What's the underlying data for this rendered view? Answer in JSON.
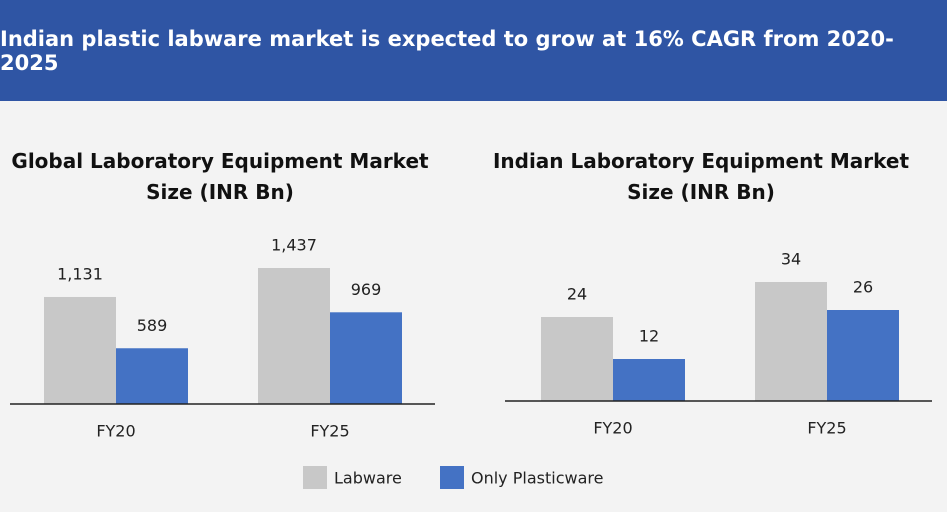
{
  "header": {
    "title": "Indian plastic labware market is expected to grow at 16% CAGR from 2020-2025"
  },
  "chart_data": [
    {
      "type": "bar",
      "title": "Global Laboratory Equipment Market\nSize (INR Bn)",
      "categories": [
        "FY20",
        "FY25"
      ],
      "series": [
        {
          "name": "Labware",
          "color": "#c8c8c8",
          "values": [
            1131,
            1437
          ],
          "value_labels": [
            "1,131",
            "1,437"
          ]
        },
        {
          "name": "Only Plasticware",
          "color": "#4472c4",
          "values": [
            589,
            969
          ],
          "value_labels": [
            "589",
            "969"
          ]
        }
      ]
    },
    {
      "type": "bar",
      "title": "Indian Laboratory Equipment Market\nSize (INR Bn)",
      "categories": [
        "FY20",
        "FY25"
      ],
      "series": [
        {
          "color": "#c8c8c8",
          "values": [
            24,
            34
          ]
        },
        {
          "color": "#4472c4",
          "values": [
            12,
            26
          ]
        }
      ]
    }
  ]
}
